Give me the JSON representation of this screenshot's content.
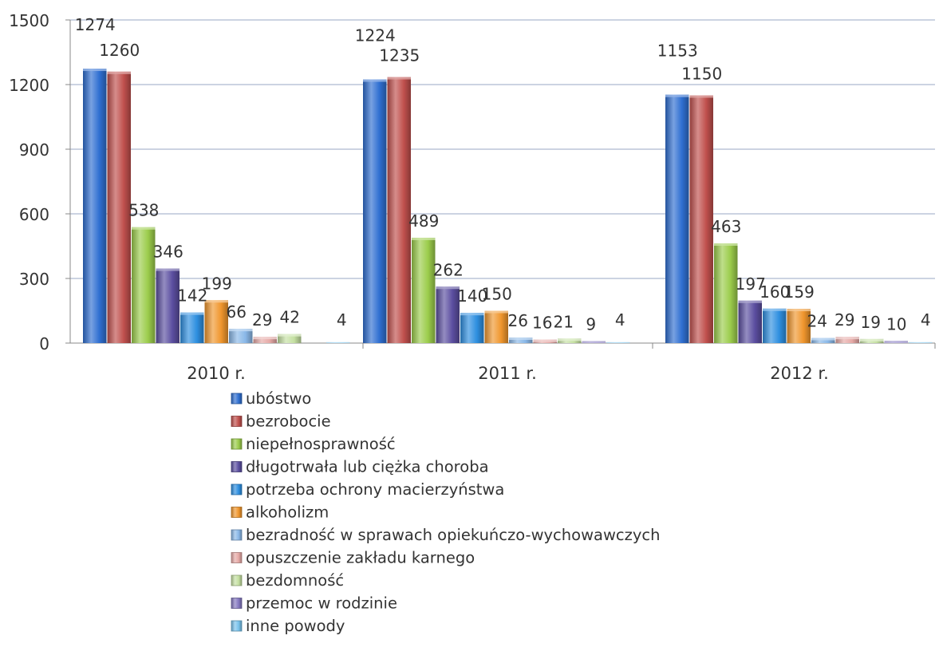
{
  "chart_data": {
    "type": "bar",
    "title": "",
    "xlabel": "",
    "ylabel": "",
    "categories": [
      "2010 r.",
      "2011 r.",
      "2012 r."
    ],
    "ylim": [
      0,
      1500
    ],
    "yticks": [
      0,
      300,
      600,
      900,
      1200,
      1500
    ],
    "grid": true,
    "legend_position": "bottom",
    "series": [
      {
        "name": "ubóstwo",
        "color": "#2f6fd1",
        "values": [
          1274,
          1224,
          1153
        ]
      },
      {
        "name": "bezrobocie",
        "color": "#c0504d",
        "values": [
          1260,
          1235,
          1150
        ]
      },
      {
        "name": "niepełnosprawność",
        "color": "#9bcc4b",
        "values": [
          538,
          489,
          463
        ]
      },
      {
        "name": "długotrwała lub ciężka choroba",
        "color": "#5b4ea0",
        "values": [
          346,
          262,
          197
        ]
      },
      {
        "name": "potrzeba ochrony macierzyństwa",
        "color": "#2e8fe0",
        "values": [
          142,
          140,
          160
        ]
      },
      {
        "name": "alkoholizm",
        "color": "#f0962d",
        "values": [
          199,
          150,
          159
        ]
      },
      {
        "name": "bezradność w sprawach opiekuńczo-wychowawczych",
        "color": "#8ab8e8",
        "values": [
          66,
          26,
          24
        ]
      },
      {
        "name": "opuszczenie zakładu karnego",
        "color": "#e6a9a6",
        "values": [
          29,
          16,
          29
        ]
      },
      {
        "name": "bezdomność",
        "color": "#c5e0a2",
        "values": [
          42,
          21,
          19
        ]
      },
      {
        "name": "przemoc w rodzinie",
        "color": "#8478c0",
        "values": [
          0,
          9,
          10
        ]
      },
      {
        "name": "inne powody",
        "color": "#79c3ec",
        "values": [
          4,
          4,
          4
        ]
      }
    ]
  }
}
